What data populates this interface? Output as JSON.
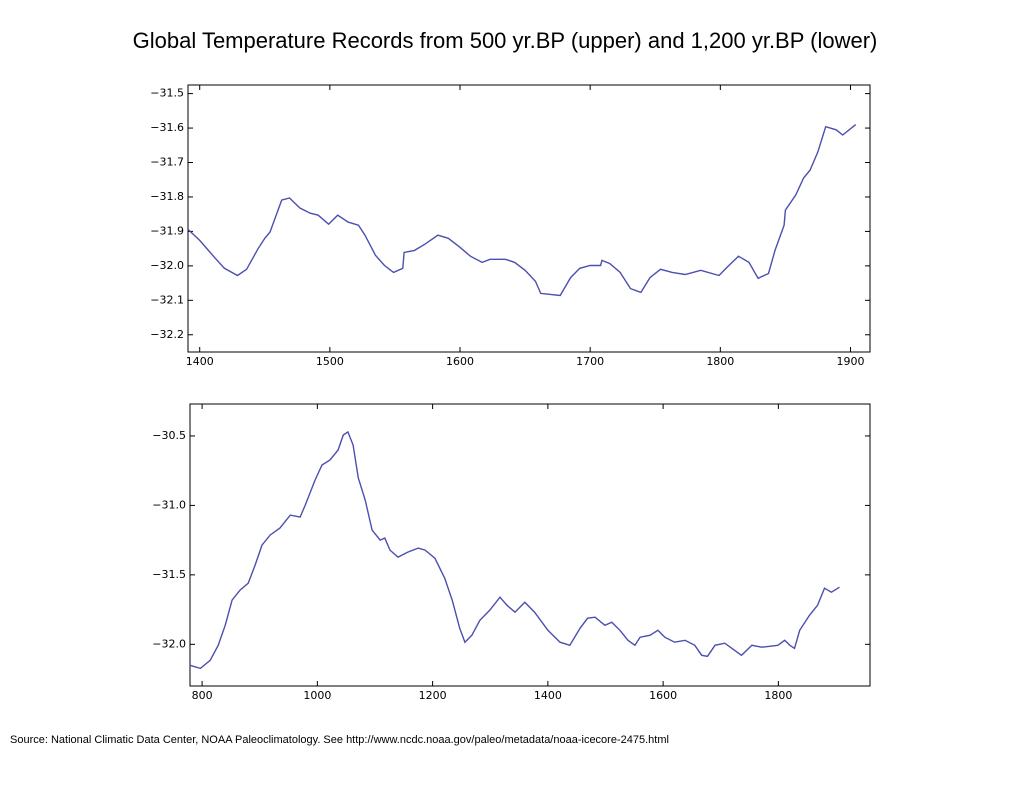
{
  "title": "Global Temperature Records from 500 yr.BP (upper) and 1,200 yr.BP (lower)",
  "source": "Source: National Climatic Data Center, NOAA Paleoclimatology.   See  http://www.ncdc.noaa.gov/paleo/metadata/noaa-icecore-2475.html",
  "chart_data": [
    {
      "type": "line",
      "color": "#4b4fae",
      "x": [
        1391,
        1400,
        1412,
        1419,
        1429,
        1436,
        1445,
        1450,
        1454,
        1463,
        1469,
        1477,
        1485,
        1491,
        1499,
        1506,
        1514,
        1522,
        1527,
        1535,
        1542,
        1549,
        1556,
        1557,
        1565,
        1573,
        1583,
        1591,
        1600,
        1608,
        1617,
        1623,
        1635,
        1642,
        1650,
        1658,
        1662,
        1677,
        1685,
        1692,
        1700,
        1708,
        1709,
        1715,
        1723,
        1731,
        1739,
        1746,
        1754,
        1763,
        1773,
        1785,
        1799,
        1806,
        1814,
        1822,
        1829,
        1837,
        1842,
        1849,
        1850,
        1858,
        1864,
        1869,
        1875,
        1881,
        1889,
        1894,
        1904
      ],
      "values": [
        -31.894,
        -31.926,
        -31.978,
        -32.007,
        -32.028,
        -32.01,
        -31.949,
        -31.92,
        -31.902,
        -31.809,
        -31.803,
        -31.832,
        -31.847,
        -31.853,
        -31.879,
        -31.853,
        -31.873,
        -31.882,
        -31.911,
        -31.969,
        -31.999,
        -32.019,
        -32.007,
        -31.961,
        -31.955,
        -31.937,
        -31.911,
        -31.92,
        -31.946,
        -31.972,
        -31.99,
        -31.981,
        -31.981,
        -31.99,
        -32.013,
        -32.045,
        -32.08,
        -32.086,
        -32.034,
        -32.007,
        -31.999,
        -31.999,
        -31.984,
        -31.993,
        -32.019,
        -32.066,
        -32.077,
        -32.034,
        -32.01,
        -32.019,
        -32.025,
        -32.013,
        -32.028,
        -32.001,
        -31.972,
        -31.99,
        -32.036,
        -32.022,
        -31.955,
        -31.882,
        -31.838,
        -31.794,
        -31.745,
        -31.722,
        -31.669,
        -31.596,
        -31.605,
        -31.62,
        -31.59
      ],
      "xlim": [
        1391,
        1915
      ],
      "ylim": [
        -32.25,
        -31.475
      ],
      "xticks": [
        1400,
        1500,
        1600,
        1700,
        1800,
        1900
      ],
      "yticks": [
        {
          "value": -31.5,
          "label": "−31.5"
        },
        {
          "value": -31.6,
          "label": "−31.6"
        },
        {
          "value": -31.7,
          "label": "−31.7"
        },
        {
          "value": -31.8,
          "label": "−31.8"
        },
        {
          "value": -31.9,
          "label": "−31.9"
        },
        {
          "value": -32.0,
          "label": "−32.0"
        },
        {
          "value": -32.1,
          "label": "−32.1"
        },
        {
          "value": -32.2,
          "label": "−32.2"
        }
      ]
    },
    {
      "type": "line",
      "color": "#4b4fae",
      "x": [
        779,
        797,
        814,
        828,
        840,
        852,
        866,
        880,
        892,
        904,
        918,
        935,
        953,
        970,
        979,
        996,
        1008,
        1022,
        1036,
        1045,
        1053,
        1062,
        1071,
        1083,
        1095,
        1109,
        1117,
        1126,
        1140,
        1157,
        1175,
        1187,
        1204,
        1221,
        1234,
        1247,
        1256,
        1268,
        1282,
        1299,
        1317,
        1329,
        1343,
        1360,
        1377,
        1400,
        1421,
        1438,
        1456,
        1469,
        1482,
        1499,
        1511,
        1525,
        1539,
        1551,
        1560,
        1577,
        1591,
        1603,
        1620,
        1638,
        1655,
        1667,
        1677,
        1690,
        1707,
        1724,
        1736,
        1754,
        1771,
        1785,
        1799,
        1811,
        1820,
        1828,
        1837,
        1854,
        1868,
        1880,
        1892,
        1906
      ],
      "values": [
        -32.151,
        -32.173,
        -32.115,
        -32.007,
        -31.863,
        -31.682,
        -31.61,
        -31.56,
        -31.43,
        -31.286,
        -31.214,
        -31.163,
        -31.07,
        -31.084,
        -30.997,
        -30.817,
        -30.709,
        -30.673,
        -30.601,
        -30.493,
        -30.471,
        -30.565,
        -30.803,
        -30.961,
        -31.178,
        -31.25,
        -31.235,
        -31.322,
        -31.372,
        -31.336,
        -31.307,
        -31.322,
        -31.38,
        -31.524,
        -31.682,
        -31.884,
        -31.985,
        -31.935,
        -31.827,
        -31.755,
        -31.661,
        -31.718,
        -31.769,
        -31.697,
        -31.769,
        -31.899,
        -31.985,
        -32.007,
        -31.884,
        -31.812,
        -31.805,
        -31.863,
        -31.841,
        -31.899,
        -31.971,
        -32.007,
        -31.949,
        -31.935,
        -31.899,
        -31.949,
        -31.985,
        -31.971,
        -32.007,
        -32.079,
        -32.086,
        -32.007,
        -31.992,
        -32.043,
        -32.079,
        -32.007,
        -32.021,
        -32.014,
        -32.007,
        -31.971,
        -32.007,
        -32.029,
        -31.899,
        -31.791,
        -31.718,
        -31.596,
        -31.625,
        -31.589
      ],
      "xlim": [
        779,
        1959
      ],
      "ylim": [
        -32.3,
        -30.27
      ],
      "xticks": [
        800,
        1000,
        1200,
        1400,
        1600,
        1800
      ],
      "yticks": [
        {
          "value": -30.5,
          "label": "−30.5"
        },
        {
          "value": -31.0,
          "label": "−31.0"
        },
        {
          "value": -31.5,
          "label": "−31.5"
        },
        {
          "value": -32.0,
          "label": "−32.0"
        }
      ]
    }
  ]
}
